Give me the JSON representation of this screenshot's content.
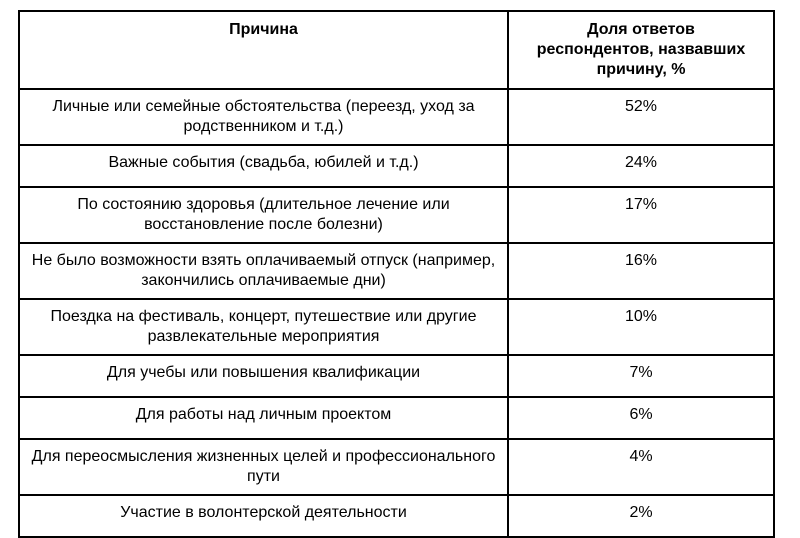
{
  "page": {
    "background_color": "#ffffff",
    "text_color": "#000000",
    "border_color": "#000000"
  },
  "table": {
    "columns": [
      "Причина",
      "Доля ответов\nреспондентов, назвавших\nпричину, %"
    ],
    "rows": [
      {
        "reason": "Личные или семейные обстоятельства (переезд, уход за родственником и т.д.)",
        "share": "52%"
      },
      {
        "reason": "Важные события (свадьба, юбилей и т.д.)",
        "share": "24%"
      },
      {
        "reason": "По состоянию здоровья (длительное лечение или восстановление после болезни)",
        "share": "17%"
      },
      {
        "reason": "Не было возможности взять оплачиваемый отпуск (например, закончились оплачиваемые дни)",
        "share": "16%"
      },
      {
        "reason": "Поездка на фестиваль, концерт, путешествие или другие развлекательные мероприятия",
        "share": "10%"
      },
      {
        "reason": "Для учебы или повышения квалификации",
        "share": "7%"
      },
      {
        "reason": "Для работы над личным проектом",
        "share": "6%"
      },
      {
        "reason": "Для переосмысления жизненных целей и профессионального пути",
        "share": "4%"
      },
      {
        "reason": "Участие в волонтерской деятельности",
        "share": "2%"
      }
    ]
  },
  "chart_data": {
    "type": "table",
    "title": "",
    "categories": [
      "Личные или семейные обстоятельства (переезд, уход за родственником и т.д.)",
      "Важные события (свадьба, юбилей и т.д.)",
      "По состоянию здоровья (длительное лечение или восстановление после болезни)",
      "Не было возможности взять оплачиваемый отпуск (например, закончились оплачиваемые дни)",
      "Поездка на фестиваль, концерт, путешествие или другие развлекательные мероприятия",
      "Для учебы или повышения квалификации",
      "Для работы над личным проектом",
      "Для переосмысления жизненных целей и профессионального пути",
      "Участие в волонтерской деятельности"
    ],
    "values": [
      52,
      24,
      17,
      16,
      10,
      7,
      6,
      4,
      2
    ],
    "value_unit": "%"
  }
}
